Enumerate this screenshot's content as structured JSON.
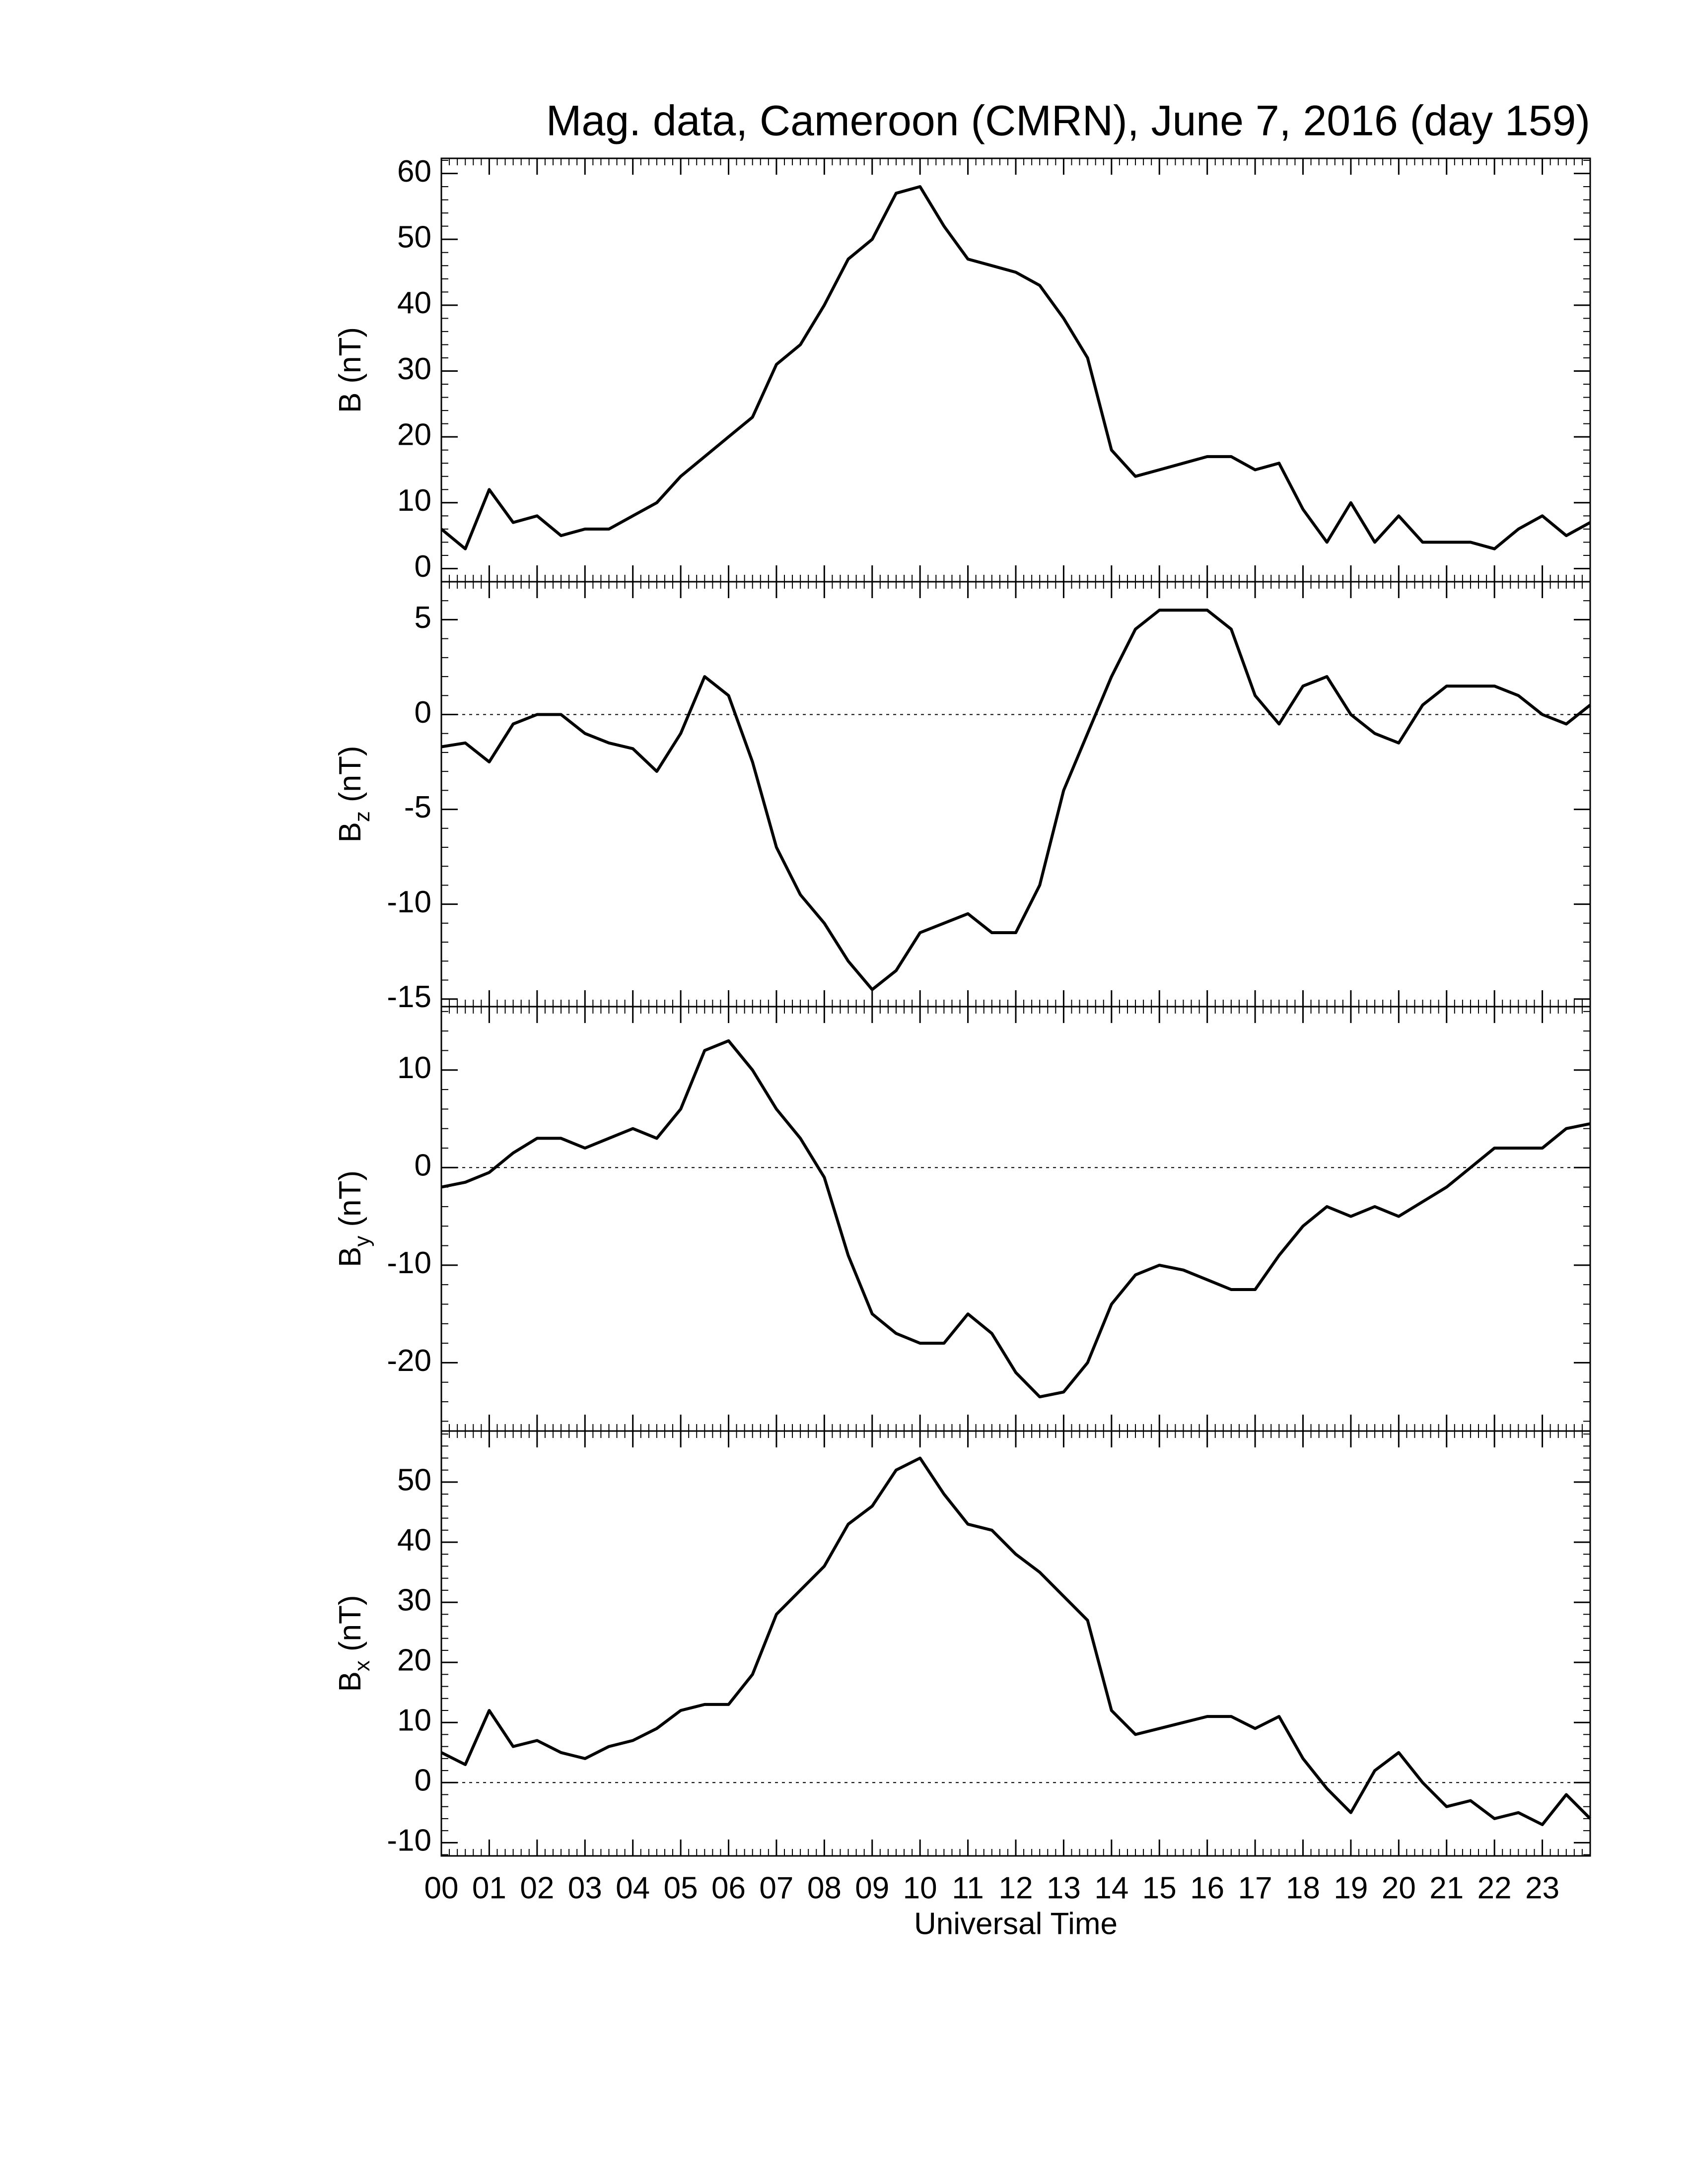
{
  "chart_data": [
    {
      "type": "line",
      "title": "Mag. data, Cameroon (CMRN), June 7, 2016 (day 159)",
      "ylabel": {
        "base": "B",
        "unit": "(nT)"
      },
      "color": "#000000",
      "zero_line": false,
      "ylim": [
        -2,
        62.3
      ],
      "yticks": [
        0,
        10,
        20,
        30,
        40,
        50,
        60
      ],
      "x": [
        0,
        0.5,
        1,
        1.5,
        2,
        2.5,
        3,
        3.5,
        4,
        4.5,
        5,
        5.5,
        6,
        6.5,
        7,
        7.5,
        8,
        8.5,
        9,
        9.5,
        10,
        10.5,
        11,
        11.5,
        12,
        12.5,
        13,
        13.5,
        14,
        14.5,
        15,
        15.5,
        16,
        16.5,
        17,
        17.5,
        18,
        18.5,
        19,
        19.5,
        20,
        20.5,
        21,
        21.5,
        22,
        22.5,
        23,
        23.5,
        24
      ],
      "values": [
        6,
        3,
        12,
        7,
        8,
        5,
        6,
        6,
        8,
        10,
        14,
        17,
        20,
        23,
        31,
        34,
        40,
        47,
        50,
        57,
        58,
        52,
        47,
        46,
        45,
        43,
        38,
        32,
        18,
        14,
        15,
        16,
        17,
        17,
        15,
        16,
        9,
        4,
        10,
        4,
        8,
        4,
        4,
        4,
        3,
        6,
        8,
        5,
        7
      ]
    },
    {
      "type": "line",
      "ylabel": {
        "base": "B",
        "sub": "z",
        "unit": "(nT)"
      },
      "color": "#000000",
      "zero_line": true,
      "ylim": [
        -15.4,
        7
      ],
      "yticks": [
        -15,
        -10,
        -5,
        0,
        5
      ],
      "x": [
        0,
        0.5,
        1,
        1.5,
        2,
        2.5,
        3,
        3.5,
        4,
        4.5,
        5,
        5.5,
        6,
        6.5,
        7,
        7.5,
        8,
        8.5,
        9,
        9.5,
        10,
        10.5,
        11,
        11.5,
        12,
        12.5,
        13,
        13.5,
        14,
        14.5,
        15,
        15.5,
        16,
        16.5,
        17,
        17.5,
        18,
        18.5,
        19,
        19.5,
        20,
        20.5,
        21,
        21.5,
        22,
        22.5,
        23,
        23.5,
        24
      ],
      "values": [
        -1.7,
        -1.5,
        -2.5,
        -0.5,
        0,
        0,
        -1,
        -1.5,
        -1.8,
        -3,
        -1,
        2,
        1,
        -2.5,
        -7,
        -9.5,
        -11,
        -13,
        -14.5,
        -13.5,
        -11.5,
        -11,
        -10.5,
        -11.5,
        -11.5,
        -9,
        -4,
        -1,
        2,
        4.5,
        5.5,
        5.5,
        5.5,
        4.5,
        1,
        -0.5,
        1.5,
        2,
        0,
        -1,
        -1.5,
        0.5,
        1.5,
        1.5,
        1.5,
        1,
        0,
        -0.5,
        0.5
      ]
    },
    {
      "type": "line",
      "ylabel": {
        "base": "B",
        "sub": "y",
        "unit": "(nT)"
      },
      "color": "#000000",
      "zero_line": true,
      "ylim": [
        -27,
        16.5
      ],
      "yticks": [
        -20,
        -10,
        0,
        10
      ],
      "x": [
        0,
        0.5,
        1,
        1.5,
        2,
        2.5,
        3,
        3.5,
        4,
        4.5,
        5,
        5.5,
        6,
        6.5,
        7,
        7.5,
        8,
        8.5,
        9,
        9.5,
        10,
        10.5,
        11,
        11.5,
        12,
        12.5,
        13,
        13.5,
        14,
        14.5,
        15,
        15.5,
        16,
        16.5,
        17,
        17.5,
        18,
        18.5,
        19,
        19.5,
        20,
        20.5,
        21,
        21.5,
        22,
        22.5,
        23,
        23.5,
        24
      ],
      "values": [
        -2,
        -1.5,
        -0.5,
        1.5,
        3,
        3,
        2,
        3,
        4,
        3,
        6,
        12,
        13,
        10,
        6,
        3,
        -1,
        -9,
        -15,
        -17,
        -18,
        -18,
        -15,
        -17,
        -21,
        -23.5,
        -23,
        -20,
        -14,
        -11,
        -10,
        -10.5,
        -11.5,
        -12.5,
        -12.5,
        -9,
        -6,
        -4,
        -5,
        -4,
        -5,
        -3.5,
        -2,
        0,
        2,
        2,
        2,
        4,
        4.5
      ]
    },
    {
      "type": "line",
      "ylabel": {
        "base": "B",
        "sub": "x",
        "unit": "(nT)"
      },
      "color": "#000000",
      "zero_line": true,
      "ylim": [
        -12.2,
        58.5
      ],
      "yticks": [
        -10,
        0,
        10,
        20,
        30,
        40,
        50
      ],
      "xlabel": "Universal Time",
      "xlim": [
        0,
        24
      ],
      "xticks": [
        {
          "value": 0,
          "label": "00"
        },
        {
          "value": 1,
          "label": "01"
        },
        {
          "value": 2,
          "label": "02"
        },
        {
          "value": 3,
          "label": "03"
        },
        {
          "value": 4,
          "label": "04"
        },
        {
          "value": 5,
          "label": "05"
        },
        {
          "value": 6,
          "label": "06"
        },
        {
          "value": 7,
          "label": "07"
        },
        {
          "value": 8,
          "label": "08"
        },
        {
          "value": 9,
          "label": "09"
        },
        10,
        11,
        12,
        13,
        14,
        15,
        16,
        17,
        18,
        19,
        20,
        21,
        22,
        23
      ],
      "x": [
        0,
        0.5,
        1,
        1.5,
        2,
        2.5,
        3,
        3.5,
        4,
        4.5,
        5,
        5.5,
        6,
        6.5,
        7,
        7.5,
        8,
        8.5,
        9,
        9.5,
        10,
        10.5,
        11,
        11.5,
        12,
        12.5,
        13,
        13.5,
        14,
        14.5,
        15,
        15.5,
        16,
        16.5,
        17,
        17.5,
        18,
        18.5,
        19,
        19.5,
        20,
        20.5,
        21,
        21.5,
        22,
        22.5,
        23,
        23.5,
        24
      ],
      "values": [
        5,
        3,
        12,
        6,
        7,
        5,
        4,
        6,
        7,
        9,
        12,
        13,
        13,
        18,
        28,
        32,
        36,
        43,
        46,
        52,
        54,
        48,
        43,
        42,
        38,
        35,
        31,
        27,
        12,
        8,
        9,
        10,
        11,
        11,
        9,
        11,
        4,
        -1,
        -5,
        2,
        5,
        0,
        -4,
        -3,
        -6,
        -5,
        -7,
        -2,
        -6
      ]
    }
  ]
}
